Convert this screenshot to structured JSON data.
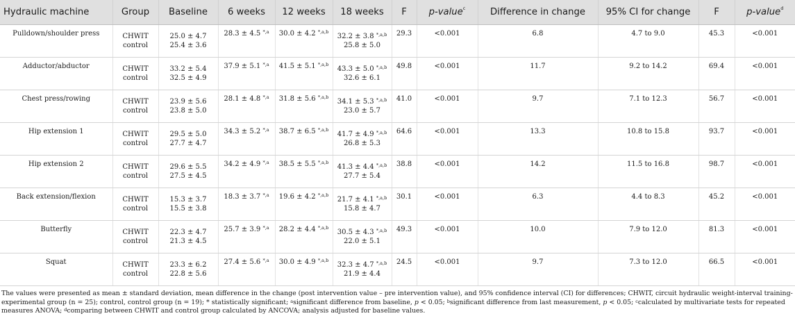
{
  "headers": {
    "machine": "Hydraulic machine",
    "group": "Group",
    "baseline": "Baseline",
    "w6": "6 weeks",
    "w12": "12 weeks",
    "w18": "18 weeks",
    "f1": "F",
    "p1_text": "p-value",
    "p1_sup": "c",
    "diff": "Difference in change",
    "ci": "95% CI for change",
    "f2": "F",
    "p2_text": "p-value",
    "p2_sup": "d"
  },
  "groups": {
    "a": "CHWIT",
    "b": "control"
  },
  "rows": [
    {
      "machine": "Pulldown/shoulder press",
      "base_a": "25.0 ± 4.7",
      "base_b": "25.4 ± 3.6",
      "w6": "28.3 ± 4.5",
      "w6_sup": "*,a",
      "w12": "30.0 ± 4.2",
      "w12_sup": "*,a,b",
      "w18_a": "32.2 ± 3.8",
      "w18_sup": "*,a,b",
      "w18_b": "25.8 ± 5.0",
      "f1": "29.3",
      "p1": "<0.001",
      "diff": "6.8",
      "ci": "4.7 to 9.0",
      "f2": "45.3",
      "p2": "<0.001"
    },
    {
      "machine": "Adductor/abductor",
      "base_a": "33.2 ± 5.4",
      "base_b": "32.5 ± 4.9",
      "w6": "37.9 ± 5.1",
      "w6_sup": "*,a",
      "w12": "41.5 ± 5.1",
      "w12_sup": "*,a,b",
      "w18_a": "43.3 ± 5.0",
      "w18_sup": "*,a,b",
      "w18_b": "32.6 ± 6.1",
      "f1": "49.8",
      "p1": "<0.001",
      "diff": "11.7",
      "ci": "9.2 to 14.2",
      "f2": "69.4",
      "p2": "<0.001"
    },
    {
      "machine": "Chest press/rowing",
      "base_a": "23.9 ± 5.6",
      "base_b": "23.8 ± 5.0",
      "w6": "28.1 ± 4.8",
      "w6_sup": "*,a",
      "w12": "31.8 ± 5.6",
      "w12_sup": "*,a,b",
      "w18_a": "34.1 ± 5.3",
      "w18_sup": "*,a,b",
      "w18_b": "23.0 ± 5.7",
      "f1": "41.0",
      "p1": "<0.001",
      "diff": "9.7",
      "ci": "7.1 to 12.3",
      "f2": "56.7",
      "p2": "<0.001"
    },
    {
      "machine": "Hip extension 1",
      "base_a": "29.5 ± 5.0",
      "base_b": "27.7 ± 4.7",
      "w6": "34.3 ± 5.2",
      "w6_sup": "*,a",
      "w12": "38.7 ± 6.5",
      "w12_sup": "*,a,b",
      "w18_a": "41.7 ± 4.9",
      "w18_sup": "*,a,b",
      "w18_b": "26.8 ± 5.3",
      "f1": "64.6",
      "p1": "<0.001",
      "diff": "13.3",
      "ci": "10.8 to 15.8",
      "f2": "93.7",
      "p2": "<0.001"
    },
    {
      "machine": "Hip extension 2",
      "base_a": "29.6 ± 5.5",
      "base_b": "27.5 ± 4.5",
      "w6": "34.2 ± 4.9",
      "w6_sup": "*,a",
      "w12": "38.5 ± 5.5",
      "w12_sup": "*,a,b",
      "w18_a": "41.3 ± 4.4",
      "w18_sup": "*,a,b",
      "w18_b": "27.7 ± 5.4",
      "f1": "38.8",
      "p1": "<0.001",
      "diff": "14.2",
      "ci": "11.5 to 16.8",
      "f2": "98.7",
      "p2": "<0.001"
    },
    {
      "machine": "Back extension/flexion",
      "base_a": "15.3 ± 3.7",
      "base_b": "15.5 ± 3.8",
      "w6": "18.3 ± 3.7",
      "w6_sup": "*,a",
      "w12": "19.6 ± 4.2",
      "w12_sup": "*,a,b",
      "w18_a": "21.7 ± 4.1",
      "w18_sup": "*,a,b",
      "w18_b": "15.8 ± 4.7",
      "f1": "30.1",
      "p1": "<0.001",
      "diff": "6.3",
      "ci": "4.4 to 8.3",
      "f2": "45.2",
      "p2": "<0.001"
    },
    {
      "machine": "Butterfly",
      "base_a": "22.3 ± 4.7",
      "base_b": "21.3 ± 4.5",
      "w6": "25.7 ± 3.9",
      "w6_sup": "*,a",
      "w12": "28.2 ± 4.4",
      "w12_sup": "*,a,b",
      "w18_a": "30.5 ± 4.3",
      "w18_sup": "*,a,b",
      "w18_b": "22.0 ± 5.1",
      "f1": "49.3",
      "p1": "<0.001",
      "diff": "10.0",
      "ci": "7.9 to 12.0",
      "f2": "81.3",
      "p2": "<0.001"
    },
    {
      "machine": "Squat",
      "base_a": "23.3 ± 6.2",
      "base_b": "22.8 ± 5.6",
      "w6": "27.4 ± 5.6",
      "w6_sup": "*,a",
      "w12": "30.0 ± 4.9",
      "w12_sup": "*,a,b",
      "w18_a": "32.3 ± 4.7",
      "w18_sup": "*,a,b",
      "w18_b": "21.9 ± 4.4",
      "f1": "24.5",
      "p1": "<0.001",
      "diff": "9.7",
      "ci": "7.3 to 12.0",
      "f2": "66.5",
      "p2": "<0.001"
    }
  ],
  "footnote": {
    "t1": "The values were presented as mean ± standard deviation, mean difference in the change (post intervention value – pre intervention value), and 95% confidence interval (CI) for differences; CHWIT, circuit hydraulic weight-interval training-experimental group (n = 25); control, control group (n = 19); * statistically significant; ",
    "s_a": "a",
    "t2": "significant difference from baseline, ",
    "p_a": "p",
    "t3": " < 0.05; ",
    "s_b": "b",
    "t4": "significant difference from last measurement, ",
    "p_b": "p",
    "t5": " < 0.05; ",
    "s_c": "c",
    "t6": "calculated by multivariate tests for repeated measures ANOVA; ",
    "s_d": "d",
    "t7": "comparing between CHWIT and control group calculated by ANCOVA; analysis adjusted for baseline values."
  }
}
